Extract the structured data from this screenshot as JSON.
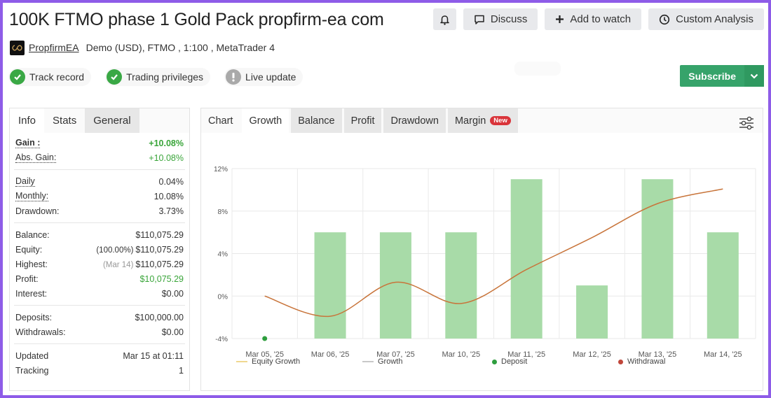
{
  "header": {
    "title": "100K FTMO phase 1 Gold Pack propfirm-ea com",
    "author": "PropfirmEA",
    "account_info": "Demo (USD), FTMO , 1:100 , MetaTrader 4",
    "badges": [
      {
        "label": "Track record",
        "status": "ok",
        "color": "#3aa845"
      },
      {
        "label": "Trading privileges",
        "status": "ok",
        "color": "#3aa845"
      },
      {
        "label": "Live update",
        "status": "warning",
        "color": "#a9a9a9"
      }
    ],
    "buttons": {
      "bell_icon": "bell-icon",
      "discuss": "Discuss",
      "add_to_watch": "Add to watch",
      "custom_analysis": "Custom Analysis"
    },
    "subscribe": {
      "label": "Subscribe",
      "color": "#36a36a"
    }
  },
  "stats_panel": {
    "tabs": [
      {
        "label": "Info",
        "active": false
      },
      {
        "label": "Stats",
        "active": false
      },
      {
        "label": "General",
        "active": true
      }
    ],
    "groups": [
      [
        {
          "key": "Gain :",
          "value": "+10.08%",
          "green": true,
          "bold": true,
          "dotted": true
        },
        {
          "key": "Abs. Gain:",
          "value": "+10.08%",
          "green": true,
          "dotted": true
        }
      ],
      [
        {
          "key": "Daily",
          "value": "0.04%",
          "dotted": true
        },
        {
          "key": "Monthly:",
          "value": "10.08%",
          "dotted": true
        },
        {
          "key": "Drawdown:",
          "value": "3.73%"
        }
      ],
      [
        {
          "key": "Balance:",
          "value": "$110,075.29"
        },
        {
          "key": "Equity:",
          "prefix": "(100.00%)",
          "value": "$110,075.29"
        },
        {
          "key": "Highest:",
          "prefix": "(Mar 14)",
          "prefix_muted": true,
          "value": "$110,075.29"
        },
        {
          "key": "Profit:",
          "value": "$10,075.29",
          "green": true
        },
        {
          "key": "Interest:",
          "value": "$0.00"
        }
      ],
      [
        {
          "key": "Deposits:",
          "value": "$100,000.00"
        },
        {
          "key": "Withdrawals:",
          "value": "$0.00"
        }
      ],
      [
        {
          "key": "Updated",
          "value": "Mar 15 at 01:11"
        },
        {
          "key": "Tracking",
          "value": "1"
        }
      ]
    ]
  },
  "chart_panel": {
    "tabs": [
      {
        "label": "Chart",
        "style": "plain"
      },
      {
        "label": "Growth",
        "style": "active"
      },
      {
        "label": "Balance",
        "style": "grey"
      },
      {
        "label": "Profit",
        "style": "grey"
      },
      {
        "label": "Drawdown",
        "style": "grey"
      },
      {
        "label": "Margin",
        "style": "grey",
        "tag": "New"
      }
    ],
    "settings_icon": "sliders-icon"
  },
  "chart_data": {
    "type": "bar",
    "title": "Growth",
    "categories": [
      "Mar 05, '25",
      "Mar 06, '25",
      "Mar 07, '25",
      "Mar 10, '25",
      "Mar 11, '25",
      "Mar 12, '25",
      "Mar 13, '25",
      "Mar 14, '25"
    ],
    "series": [
      {
        "name": "Growth",
        "type": "bar",
        "color": "#a8dba8",
        "values": [
          null,
          6,
          6,
          6,
          11,
          1,
          11,
          6
        ]
      },
      {
        "name": "Equity Growth",
        "type": "line",
        "color": "#c8743a",
        "values": [
          0,
          -1.9,
          1.3,
          -0.7,
          2.5,
          5.5,
          8.7,
          10.08
        ]
      },
      {
        "name": "Deposit",
        "type": "marker",
        "color": "#2e9e3e",
        "points": [
          {
            "x": "Mar 05, '25",
            "y": -4
          }
        ]
      }
    ],
    "yticks": [
      "12%",
      "8%",
      "4%",
      "0%",
      "-4%"
    ],
    "ylim": [
      -4,
      12
    ],
    "xlabel": "",
    "ylabel": "",
    "grid": true,
    "legend": [
      {
        "label": "Equity Growth",
        "kind": "line",
        "color": "#f0d890"
      },
      {
        "label": "Growth",
        "kind": "line",
        "color": "#c8c8c8"
      },
      {
        "label": "Deposit",
        "kind": "dot",
        "color": "#2e9e3e"
      },
      {
        "label": "Withdrawal",
        "kind": "dot",
        "color": "#c0463a"
      }
    ],
    "legend_position": "bottom"
  }
}
